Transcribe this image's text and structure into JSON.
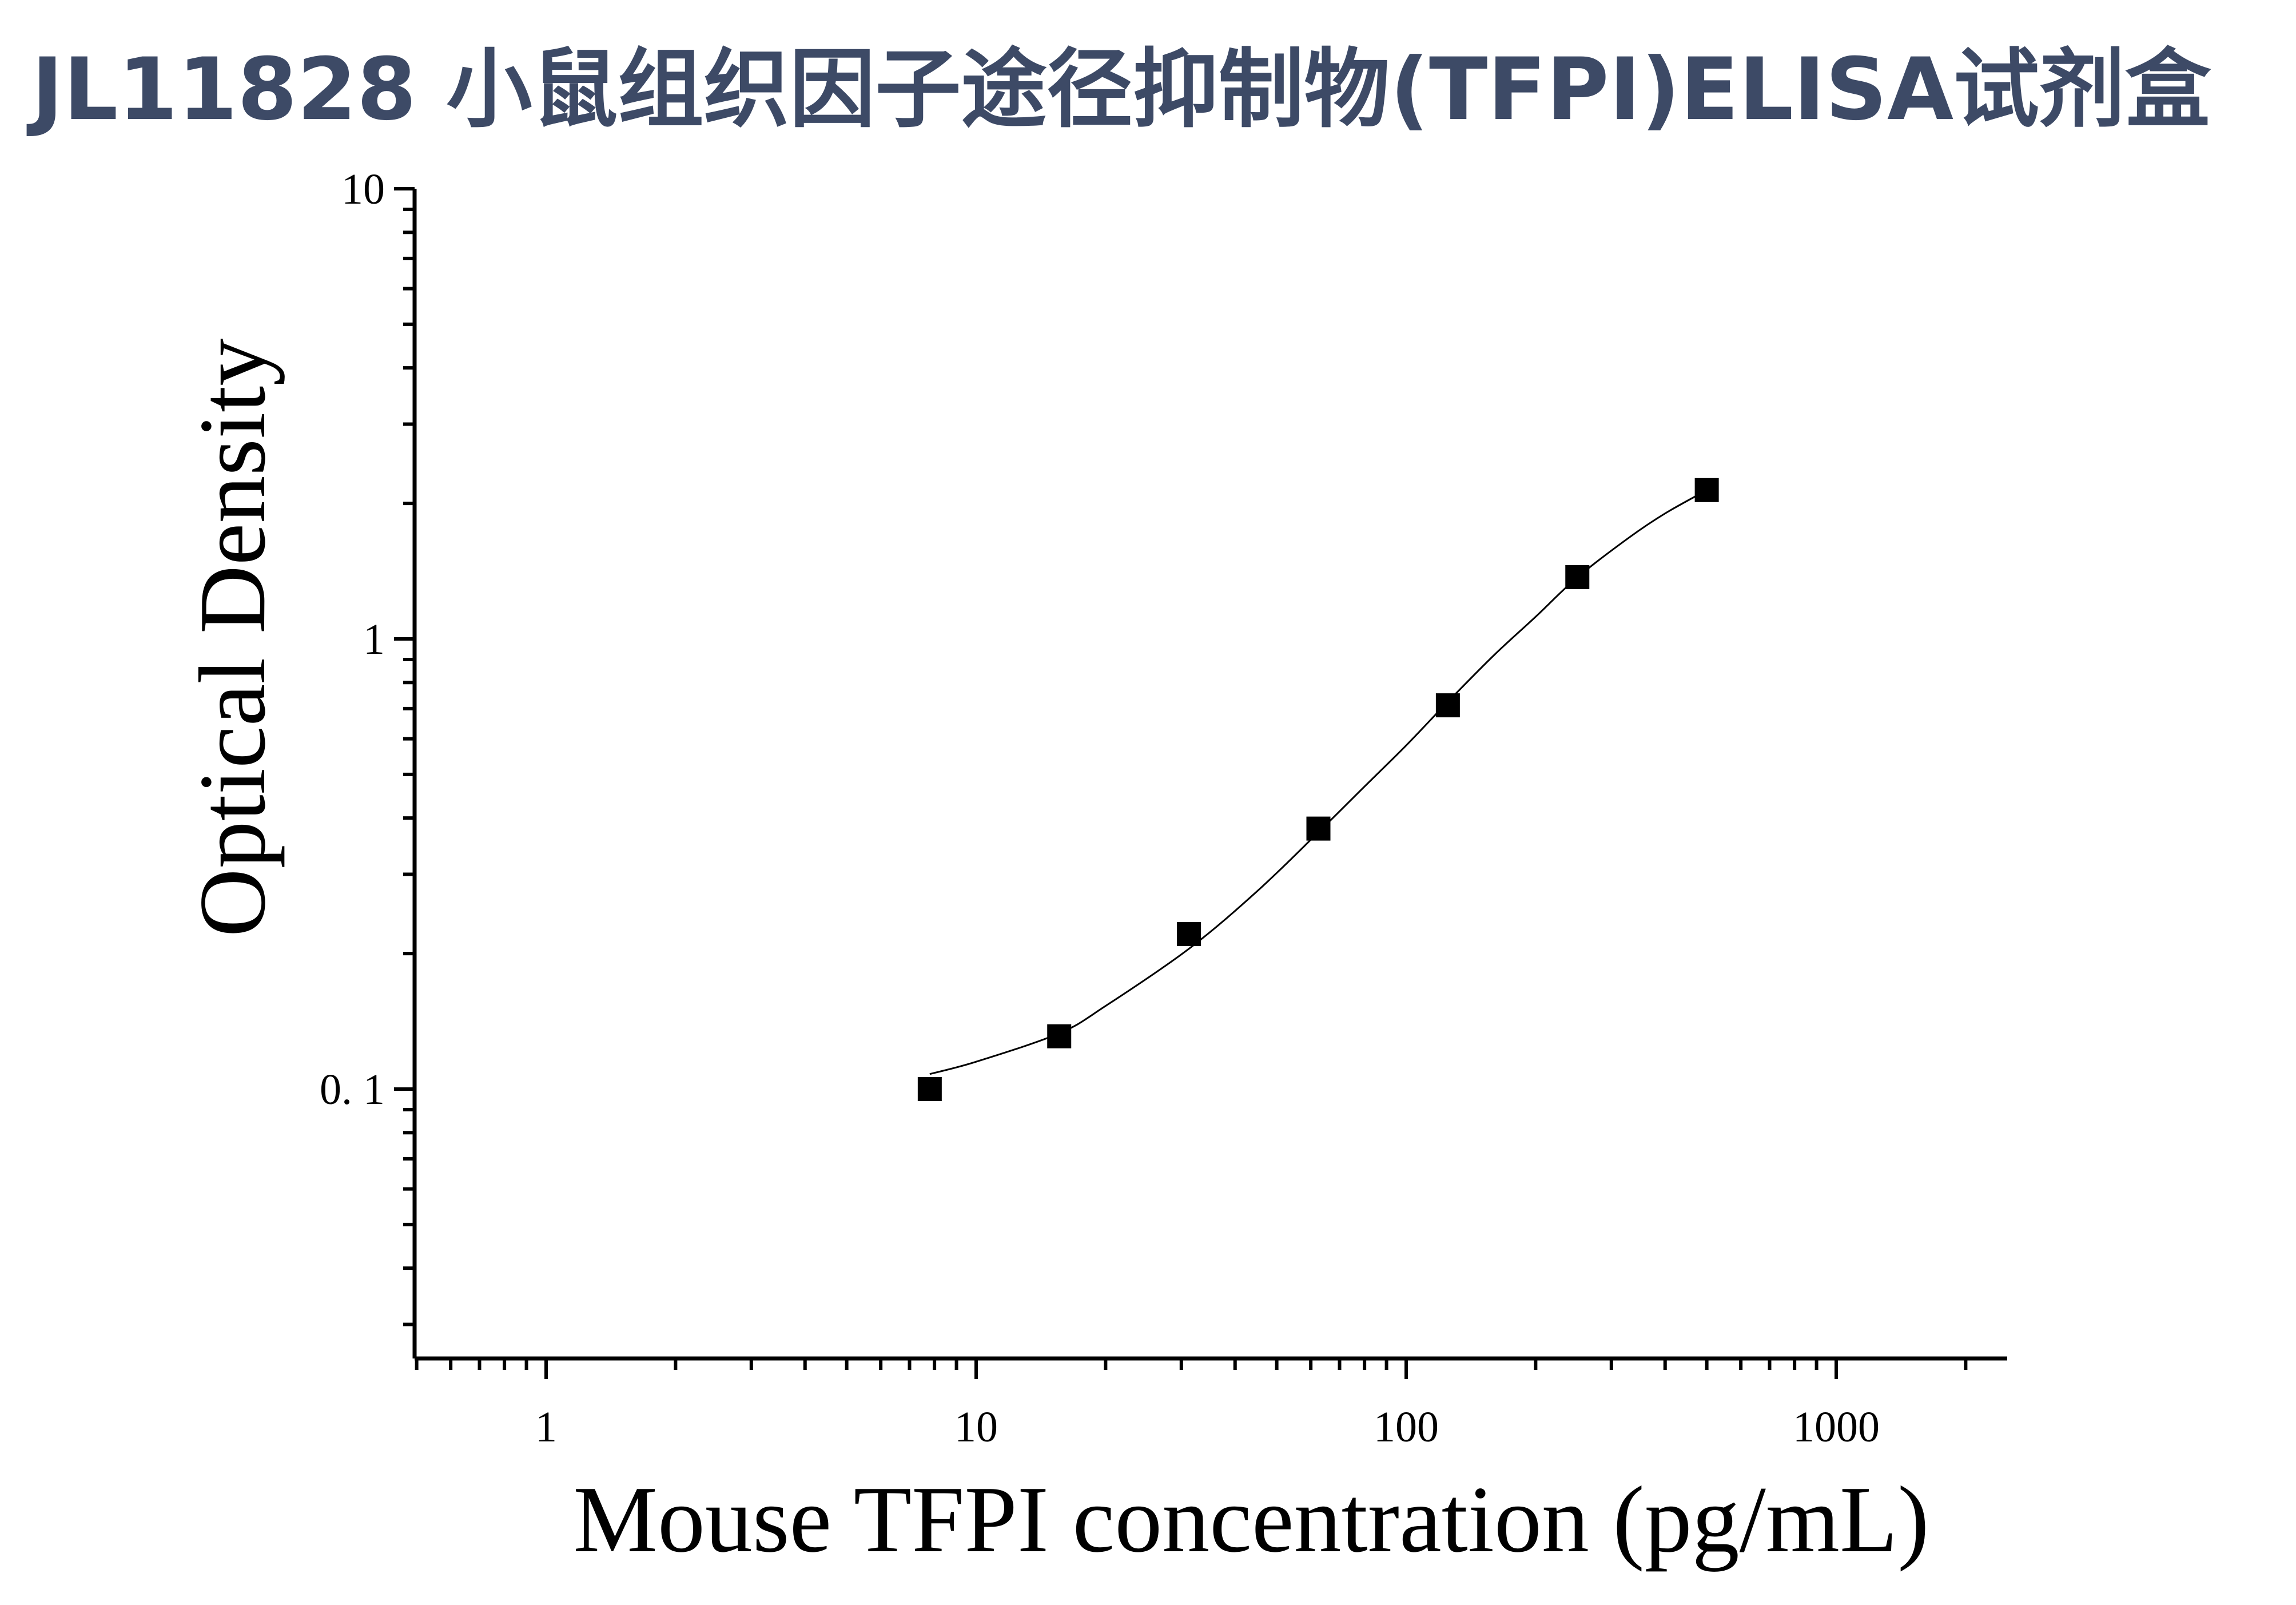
{
  "page": {
    "title": "JL11828 小鼠组织因子途径抑制物(TFPI)ELISA试剂盒"
  },
  "chart_data": {
    "type": "scatter",
    "title": "JL11828 小鼠组织因子途径抑制物(TFPI)ELISA试剂盒",
    "xlabel": "Mouse TFPI concentration (pg/mL)",
    "ylabel": "Optical Density",
    "x_scale": "log",
    "y_scale": "log",
    "xlim": [
      0.5,
      2300
    ],
    "ylim": [
      0.025,
      10
    ],
    "x_ticks": [
      {
        "value": 1,
        "label": "1"
      },
      {
        "value": 10,
        "label": "10"
      },
      {
        "value": 100,
        "label": "100"
      },
      {
        "value": 1000,
        "label": "1000"
      }
    ],
    "y_ticks": [
      {
        "value": 10,
        "label": "10"
      },
      {
        "value": 1,
        "label": "1"
      },
      {
        "value": 0.1,
        "label": "0. 1"
      }
    ],
    "grid": false,
    "legend": "none",
    "marker": "square",
    "color": "#000000",
    "series": [
      {
        "x": [
          7.8,
          15.6,
          31.25,
          62.5,
          125,
          250,
          500
        ],
        "y": [
          0.1,
          0.131,
          0.221,
          0.379,
          0.712,
          1.372,
          2.141
        ]
      }
    ],
    "fit_curve": {
      "type": "4PL sigmoid",
      "x": [
        7.8,
        10,
        15.6,
        20,
        31.25,
        45,
        62.5,
        80,
        100,
        125,
        160,
        200,
        250,
        330,
        400,
        500
      ],
      "y": [
        0.108,
        0.115,
        0.133,
        0.153,
        0.205,
        0.275,
        0.372,
        0.47,
        0.58,
        0.725,
        0.92,
        1.12,
        1.37,
        1.68,
        1.9,
        2.14
      ]
    }
  }
}
